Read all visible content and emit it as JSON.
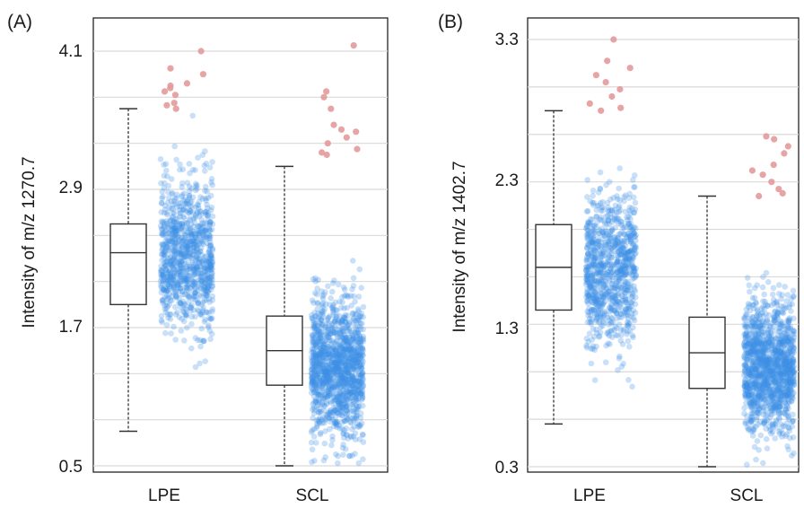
{
  "chart_data": [
    {
      "type": "box-jitter",
      "panel_label": "(A)",
      "ylabel": "Intensity of m/z 1270.7",
      "yticks": [
        "4.1",
        "2.9",
        "1.7",
        "0.5"
      ],
      "ylim": [
        0.5,
        4.1
      ],
      "categories": [
        "LPE",
        "SCL"
      ],
      "boxes": [
        {
          "name": "LPE",
          "whisker_low": 0.8,
          "q1": 1.9,
          "median": 2.35,
          "q3": 2.6,
          "whisker_high": 3.6
        },
        {
          "name": "SCL",
          "whisker_low": 0.5,
          "q1": 1.2,
          "median": 1.5,
          "q3": 1.8,
          "whisker_high": 3.1
        }
      ],
      "outliers": [
        {
          "name": "LPE",
          "values": [
            3.6,
            3.63,
            3.65,
            3.72,
            3.75,
            3.78,
            3.8,
            3.82,
            3.9,
            3.95,
            4.1
          ]
        },
        {
          "name": "SCL",
          "values": [
            3.2,
            3.22,
            3.25,
            3.3,
            3.35,
            3.4,
            3.42,
            3.46,
            3.6,
            3.7,
            3.75,
            4.15
          ]
        }
      ],
      "jitter": [
        {
          "name": "LPE",
          "center": 2.35,
          "spread": 0.55,
          "min": 0.8,
          "max": 3.55,
          "count": 950,
          "seed": 11
        },
        {
          "name": "SCL",
          "center": 1.35,
          "spread": 0.5,
          "min": 0.5,
          "max": 3.0,
          "count": 1300,
          "seed": 23
        }
      ],
      "colors": {
        "points": "#3d8ee6",
        "outliers": "#e49a9a",
        "box": "#333333",
        "grid": "#d9d9d9"
      },
      "grid": true
    },
    {
      "type": "box-jitter",
      "panel_label": "(B)",
      "ylabel": "Intensity of m/z 1402.7",
      "yticks": [
        "3.3",
        "2.3",
        "1.3",
        "0.3"
      ],
      "ylim": [
        0.3,
        3.3
      ],
      "categories": [
        "LPE",
        "SCL"
      ],
      "boxes": [
        {
          "name": "LPE",
          "whisker_low": 0.6,
          "q1": 1.4,
          "median": 1.7,
          "q3": 2.0,
          "whisker_high": 2.8
        },
        {
          "name": "SCL",
          "whisker_low": 0.3,
          "q1": 0.85,
          "median": 1.1,
          "q3": 1.35,
          "whisker_high": 2.2
        }
      ],
      "outliers": [
        {
          "name": "LPE",
          "values": [
            2.8,
            2.82,
            2.85,
            2.9,
            2.95,
            3.0,
            3.05,
            3.1,
            3.15,
            3.3
          ]
        },
        {
          "name": "SCL",
          "values": [
            2.2,
            2.22,
            2.25,
            2.3,
            2.35,
            2.38,
            2.42,
            2.5,
            2.55,
            2.6,
            2.62
          ]
        }
      ],
      "jitter": [
        {
          "name": "LPE",
          "center": 1.7,
          "spread": 0.45,
          "min": 0.6,
          "max": 2.75,
          "count": 900,
          "seed": 37
        },
        {
          "name": "SCL",
          "center": 1.0,
          "spread": 0.38,
          "min": 0.3,
          "max": 2.15,
          "count": 1300,
          "seed": 53
        }
      ],
      "colors": {
        "points": "#3d8ee6",
        "outliers": "#e49a9a",
        "box": "#333333",
        "grid": "#d9d9d9"
      },
      "grid": true
    }
  ]
}
